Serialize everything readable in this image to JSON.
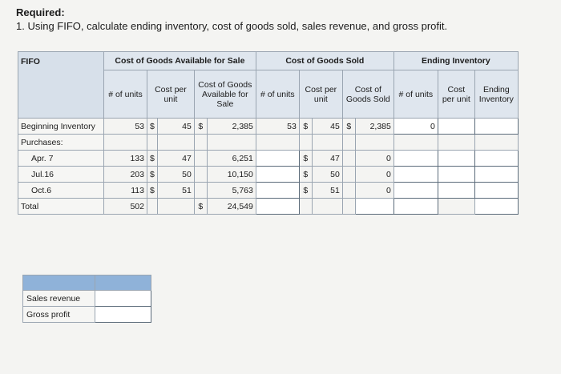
{
  "heading": "Required:",
  "question": "1. Using FIFO, calculate ending inventory, cost of goods sold, sales revenue, and gross profit.",
  "table": {
    "corner": "FIFO",
    "groups": {
      "available": "Cost of Goods Available for Sale",
      "sold": "Cost of Goods Sold",
      "ending": "Ending Inventory"
    },
    "subheaders": {
      "units": "# of units",
      "cost_per_unit": "Cost per unit",
      "cogas": "Cost of Goods Available for Sale",
      "cost_per_unit2": "Cost per unit",
      "cogs": "Cost of Goods Sold",
      "units3": "# of units",
      "cost_per_unit3": "Cost per unit",
      "ending_inventory": "Ending Inventory"
    },
    "rows": {
      "beginning": {
        "label": "Beginning Inventory",
        "units": "53",
        "dollar": "$",
        "cost": "45",
        "dollar2": "$",
        "total": "2,385",
        "sold_units": "53",
        "sold_dollar": "$",
        "sold_cost": "45",
        "sold_dollar2": "$",
        "sold_total": "2,385",
        "end_units": "0"
      },
      "purchases_label": "Purchases:",
      "apr7": {
        "label": "Apr. 7",
        "units": "133",
        "dollar": "$",
        "cost": "47",
        "total": "6,251",
        "sold_dollar": "$",
        "sold_cost": "47",
        "sold_total": "0"
      },
      "jul16": {
        "label": "Jul.16",
        "units": "203",
        "dollar": "$",
        "cost": "50",
        "total": "10,150",
        "sold_dollar": "$",
        "sold_cost": "50",
        "sold_total": "0"
      },
      "oct6": {
        "label": "Oct.6",
        "units": "113",
        "dollar": "$",
        "cost": "51",
        "total": "5,763",
        "sold_dollar": "$",
        "sold_cost": "51",
        "sold_total": "0"
      },
      "total": {
        "label": "Total",
        "units": "502",
        "dollar": "$",
        "total": "24,549"
      }
    }
  },
  "summary": {
    "sales_revenue_label": "Sales revenue",
    "gross_profit_label": "Gross profit"
  }
}
